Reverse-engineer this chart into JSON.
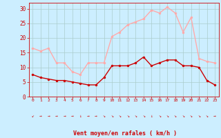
{
  "hours": [
    0,
    1,
    2,
    3,
    4,
    5,
    6,
    7,
    8,
    9,
    10,
    11,
    12,
    13,
    14,
    15,
    16,
    17,
    18,
    19,
    20,
    21,
    22,
    23
  ],
  "wind_avg": [
    7.5,
    6.5,
    6.0,
    5.5,
    5.5,
    5.0,
    4.5,
    4.0,
    4.0,
    6.5,
    10.5,
    10.5,
    10.5,
    11.5,
    13.5,
    10.5,
    11.5,
    12.5,
    12.5,
    10.5,
    10.5,
    10.0,
    5.5,
    4.0
  ],
  "wind_gust": [
    16.5,
    15.5,
    16.5,
    11.5,
    11.5,
    8.5,
    7.5,
    11.5,
    11.5,
    11.5,
    20.5,
    22.0,
    24.5,
    25.5,
    26.5,
    29.5,
    28.5,
    30.5,
    28.5,
    22.0,
    27.0,
    13.0,
    12.0,
    11.5
  ],
  "wind_avg_color": "#cc0000",
  "wind_gust_color": "#ffaaaa",
  "bg_color": "#cceeff",
  "grid_color": "#aacccc",
  "xlabel": "Vent moyen/en rafales ( km/h )",
  "xlabel_color": "#cc0000",
  "tick_color": "#cc0000",
  "ylim": [
    0,
    32
  ],
  "yticks": [
    0,
    5,
    10,
    15,
    20,
    25,
    30
  ],
  "marker_size": 2.5,
  "line_width": 1.0,
  "arrow_symbols": [
    "↙",
    "→",
    "→",
    "→",
    "→",
    "→",
    "↓",
    "→",
    "→",
    "↘",
    "↘",
    "↘",
    "↘",
    "↘",
    "↘",
    "↓",
    "↘",
    "↘",
    "↘",
    "↘",
    "↘",
    "↘",
    "↘",
    "→"
  ]
}
